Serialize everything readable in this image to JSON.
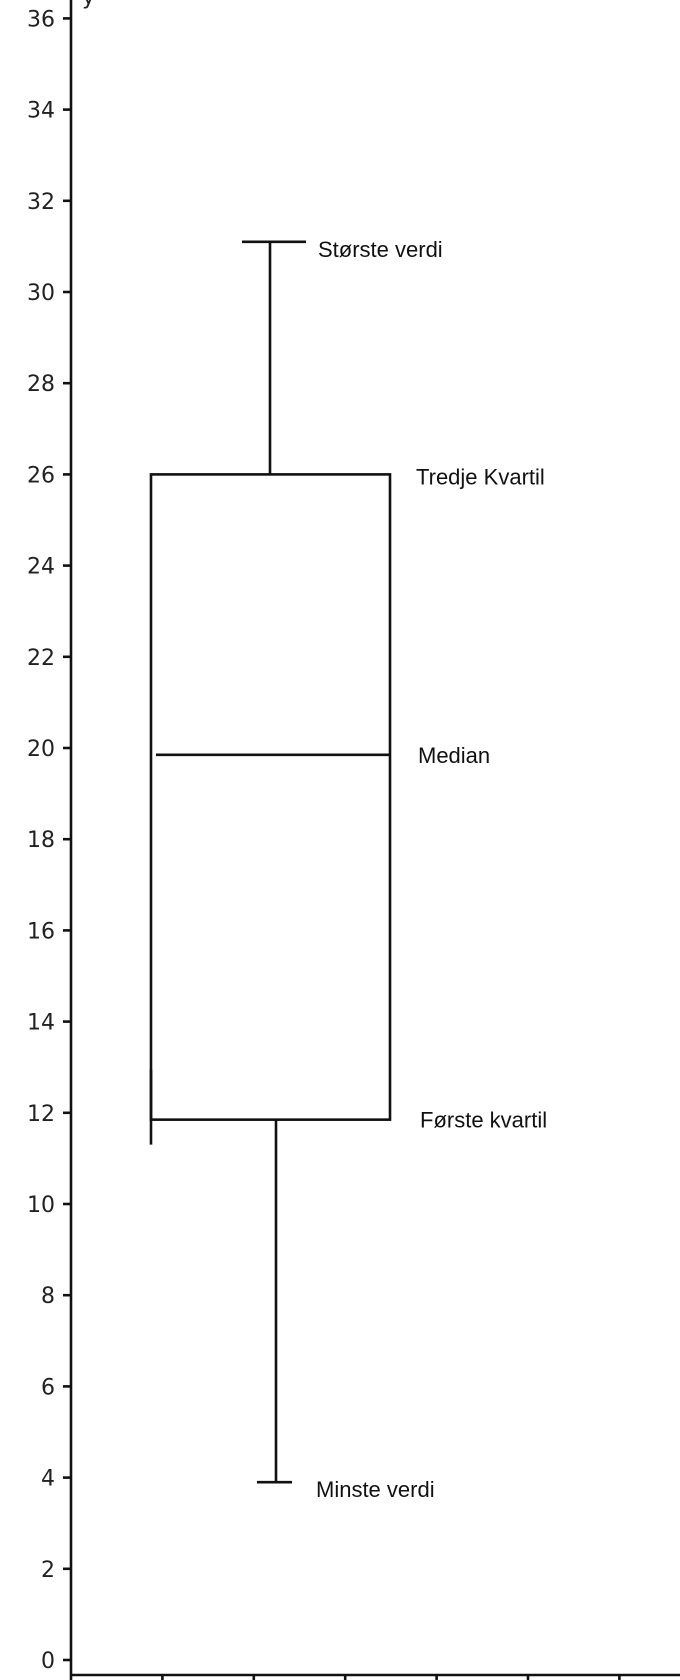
{
  "chart_data": {
    "type": "box",
    "ylabel": "y",
    "ylim": [
      0,
      36
    ],
    "y_ticks": [
      "0",
      "2",
      "4",
      "6",
      "8",
      "10",
      "12",
      "14",
      "16",
      "18",
      "20",
      "22",
      "24",
      "26",
      "28",
      "30",
      "32",
      "34",
      "36"
    ],
    "grid": false,
    "box": {
      "min": 3.9,
      "q1": 11.85,
      "median": 19.85,
      "q3": 26.0,
      "max": 31.1
    },
    "annotations": {
      "max": "Største verdi",
      "q3": "Tredje Kvartil",
      "median": "Median",
      "q1": "Første kvartil",
      "min": "Minste verdi"
    }
  }
}
